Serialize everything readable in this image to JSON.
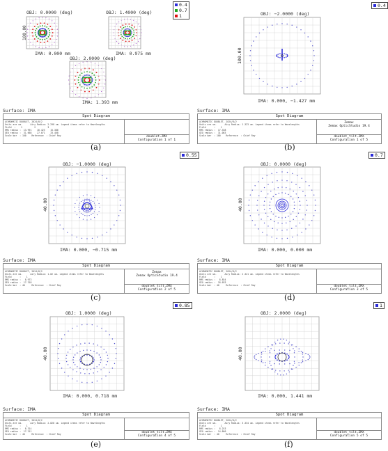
{
  "figure": {
    "panels": [
      {
        "id": "a",
        "caption": "(a)",
        "legend": [
          "0.4",
          "0.7",
          "1"
        ],
        "plots": [
          {
            "obj": "OBJ: 0.0000 (deg)",
            "ima": "IMA: 0.000 mm",
            "scale": "100.00"
          },
          {
            "obj": "OBJ: 1.4000 (deg)",
            "ima": "IMA: 0.975 mm"
          },
          {
            "obj": "OBJ: 2.0000 (deg)",
            "ima": "IMA: 1.393 mm"
          }
        ],
        "surface": "Surface: IMA",
        "box_title": "Spot Diagram",
        "box_text": "ACHROMATIC DOUBLET, 2024/8/2\nUnits are um.      Airy Radius: 2.298 um. Legend items refer to Wavelengths\nField  :    1         2         3\nRMS radius :  13.991    16.423    15.386\nGEO radius :  31.668    27.071    33.468\nScale bar  : 100    Reference  : Chief Ray",
        "box_right_top": "",
        "box_right_bottom": "doublet.ZMX\nConfiguration 1 of 1"
      },
      {
        "id": "b",
        "caption": "(b)",
        "legend": [
          "0.4"
        ],
        "obj": "OBJ: −2.0000 (deg)",
        "ima": "IMA: 0.000, −1.427 mm",
        "scale": "100.00",
        "surface": "Surface: IMA",
        "box_title": "Spot Diagram",
        "box_text": "ACHROMATIC DOUBLET, 2024/8/2\nUnits are um.      Airy Radius: 1.323 um. Legend items refer to Wavelengths\nField      :    1\nRMS radius :  17.338\nGEO radius :  31.083\nScale bar  : 100    Reference  : Chief Ray",
        "box_right_top": "Zemax\nZemax OpticStudio 19.4",
        "box_right_bottom": "doublet_tilt.ZMX\nConfiguration 1 of 5"
      },
      {
        "id": "c",
        "caption": "(c)",
        "legend": [
          "0.55"
        ],
        "obj": "OBJ: −1.0000 (deg)",
        "ima": "IMA: 0.000, −0.715 mm",
        "scale": "40.00",
        "surface": "Surface: IMA",
        "box_title": "Spot Diagram",
        "box_text": "ACHROMATIC DOUBLET, 2024/8/2\nUnits are um.      Airy Radius: 1.82 um. Legend items refer to Wavelengths\nField      :    1\nRMS radius :   8.973\nGEO radius :  17.318\nScale bar  : 40     Reference  : Chief Ray",
        "box_right_top": "Zemax\nZemax OpticStudio 19.4",
        "box_right_bottom": "doublet_tilt.ZMX\nConfiguration 2 of 5"
      },
      {
        "id": "d",
        "caption": "(d)",
        "legend": [
          "0.7"
        ],
        "obj": "OBJ: 0.0000 (deg)",
        "ima": "IMA: 0.000, 0.000 mm",
        "scale": "40.00",
        "surface": "Surface: IMA",
        "box_title": "Spot Diagram",
        "box_text": "ACHROMATIC DOUBLET, 2024/8/2\nUnits are um.      Airy Radius: 2.321 um. Legend items refer to Wavelengths\nField      :    1\nRMS radius :   8.854\nGEO radius :  18.693\nScale bar  : 40     Reference  : Chief Ray",
        "box_right_top": "",
        "box_right_bottom": "doublet_tilt.ZMX\nConfiguration 3 of 5"
      },
      {
        "id": "e",
        "caption": "(e)",
        "legend": [
          "0.85"
        ],
        "obj": "OBJ: 1.0000 (deg)",
        "ima": "IMA: 0.000, 0.718 mm",
        "scale": "40.00",
        "surface": "Surface: IMA",
        "box_title": "Spot Diagram",
        "box_text": "ACHROMATIC DOUBLET, 2024/8/2\nUnits are um.      Airy Radius: 2.828 um. Legend items refer to Wavelengths\nField      :    1\nRMS radius :   8.314\nGEO radius :  17.211\nScale bar  : 40     Reference  : Chief Ray",
        "box_right_top": "",
        "box_right_bottom": "doublet_tilt.ZMX\nConfiguration 4 of 5"
      },
      {
        "id": "f",
        "caption": "(f)",
        "legend": [
          "1"
        ],
        "obj": "OBJ: 2.0000 (deg)",
        "ima": "IMA: 0.000, 1.441 mm",
        "scale": "40.00",
        "surface": "Surface: IMA",
        "box_title": "Spot Diagram",
        "box_text": "ACHROMATIC DOUBLET, 2024/8/2\nUnits are um.      Airy Radius: 3.334 um. Legend items refer to Wavelengths\nField      :    1\nRMS radius :   8.253\nGEO radius :  14.860\nScale bar  : 40     Reference  : Chief Ray",
        "box_right_top": "",
        "box_right_bottom": "doublet_tilt.ZMX\nConfiguration 5 of 5"
      }
    ],
    "colors": {
      "blue": "#2b2bd9",
      "green": "#1fa81f",
      "red": "#e01010",
      "grid": "#cfcfcf",
      "dot": "#5555cc"
    }
  }
}
